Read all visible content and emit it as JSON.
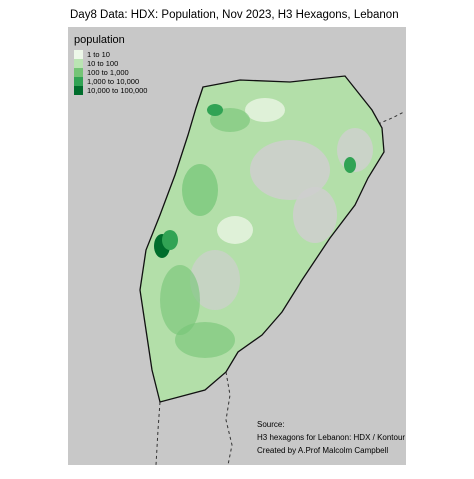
{
  "title": "Day8 Data: HDX: Population, Nov 2023, H3 Hexagons, Lebanon",
  "legend": {
    "title": "population",
    "items": [
      {
        "label": "1 to 10",
        "color": "#edf8e9"
      },
      {
        "label": "10 to 100",
        "color": "#bae4b3"
      },
      {
        "label": "100 to 1,000",
        "color": "#74c476"
      },
      {
        "label": "1,000 to 10,000",
        "color": "#31a354"
      },
      {
        "label": "10,000 to 100,000",
        "color": "#006d2c"
      }
    ]
  },
  "caption": [
    "Source:",
    "H3 hexagons for Lebanon: HDX / Kontour",
    "Created by A.Prof Malcolm Campbell"
  ]
}
